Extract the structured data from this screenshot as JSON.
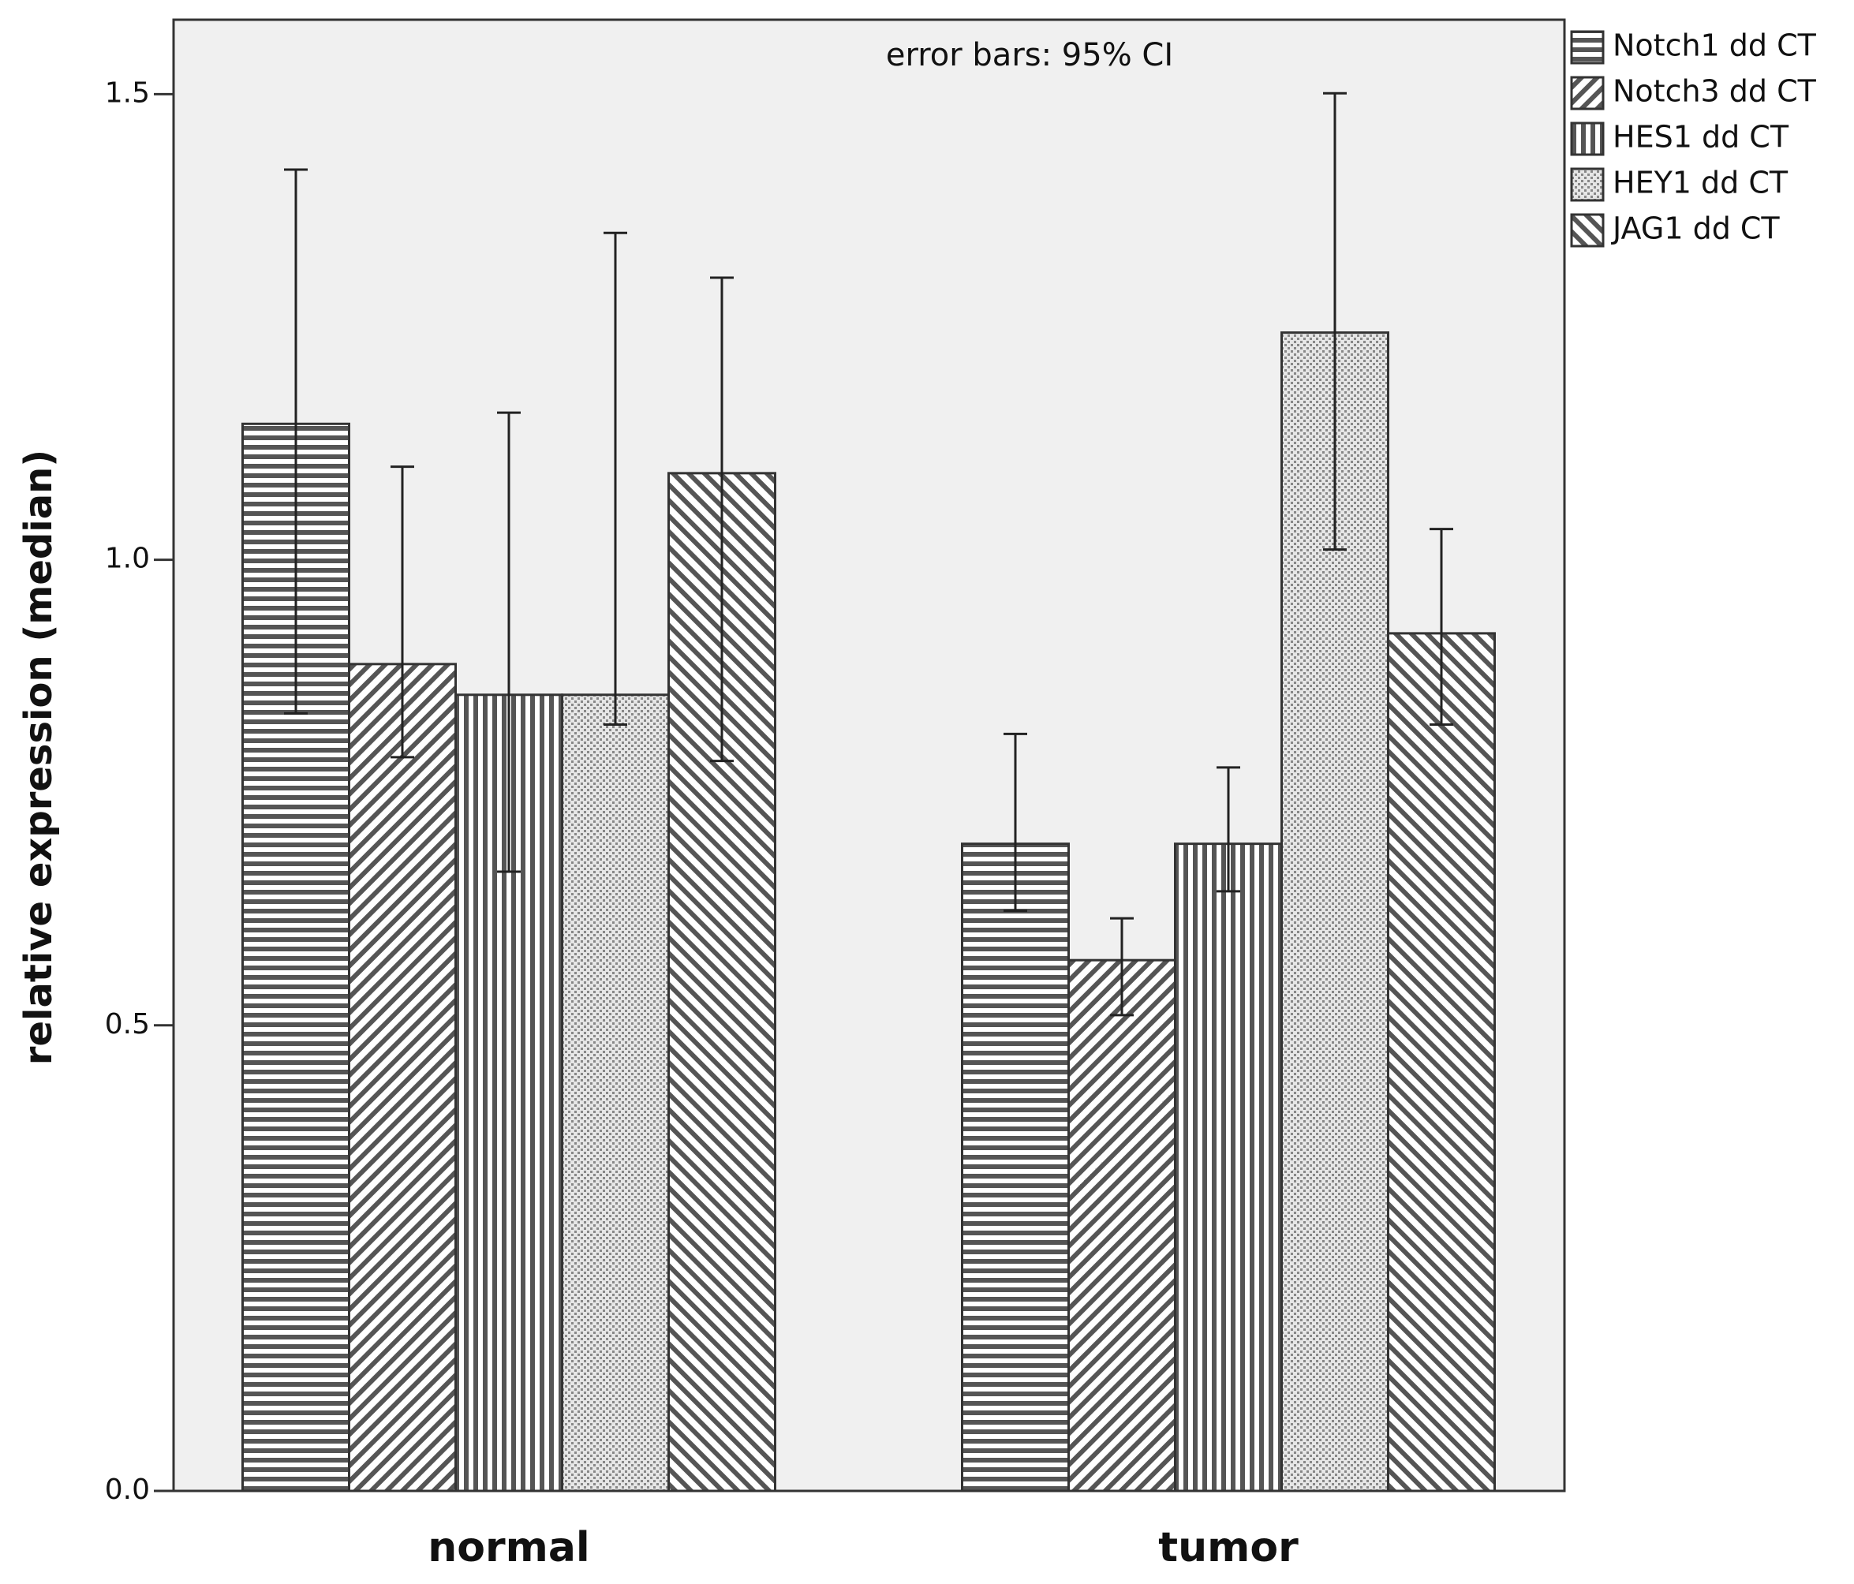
{
  "chart_data": {
    "type": "bar",
    "annotation": "error bars: 95% CI",
    "y_label": "relative expression (median)",
    "categories": [
      "normal",
      "tumor"
    ],
    "ylim": [
      0,
      1.58
    ],
    "yticks": [
      {
        "value": 0,
        "label": "0.0"
      },
      0.5,
      {
        "value": 1,
        "label": "1.0"
      },
      1.5
    ],
    "series": [
      {
        "name": "Notch1 dd CT",
        "pattern": "horizontal",
        "color": "#555555",
        "values": [
          1.146,
          0.695
        ],
        "lower": [
          0.835,
          0.623
        ],
        "upper": [
          1.419,
          0.813
        ]
      },
      {
        "name": "Notch3 dd CT",
        "pattern": "backslash",
        "color": "#555555",
        "values": [
          0.888,
          0.57
        ],
        "lower": [
          0.788,
          0.511
        ],
        "upper": [
          1.1,
          0.615
        ]
      },
      {
        "name": "HES1 dd CT",
        "pattern": "vertical",
        "color": "#555555",
        "values": [
          0.855,
          0.695
        ],
        "lower": [
          0.665,
          0.644
        ],
        "upper": [
          1.158,
          0.777
        ]
      },
      {
        "name": "HEY1 dd CT",
        "pattern": "dots",
        "color": "#555555",
        "values": [
          0.855,
          1.244
        ],
        "lower": [
          0.823,
          1.011
        ],
        "upper": [
          1.351,
          1.501
        ]
      },
      {
        "name": "JAG1 dd CT",
        "pattern": "slash",
        "color": "#555555",
        "values": [
          1.093,
          0.921
        ],
        "lower": [
          0.784,
          0.823
        ],
        "upper": [
          1.303,
          1.033
        ]
      }
    ]
  }
}
